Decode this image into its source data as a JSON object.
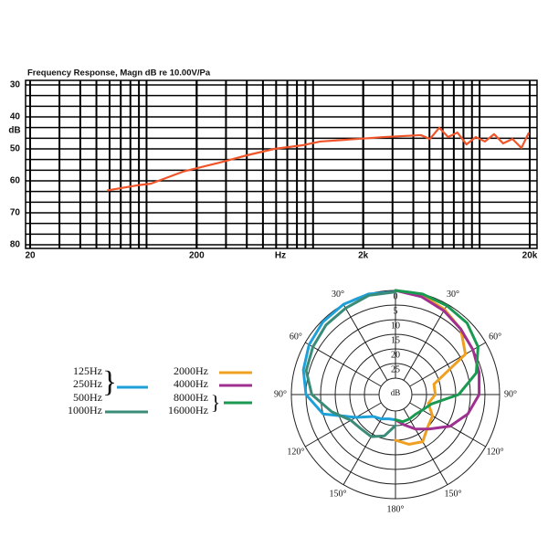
{
  "chart_data": [
    {
      "type": "line",
      "title": "Frequency Response, Magn dB re 10.00V/Pa",
      "xlabel": "Hz",
      "ylabel": "dB",
      "x": [
        58,
        88,
        106,
        166,
        274,
        401,
        586,
        857,
        1104,
        1614,
        2675,
        4437,
        5030,
        5720,
        6470,
        7360,
        8340,
        9490,
        10760,
        12220,
        13850,
        15740,
        17830,
        19770
      ],
      "values": [
        63,
        61.4,
        60.9,
        57.1,
        54.3,
        52,
        50,
        48.9,
        47.7,
        47.1,
        46.3,
        45.7,
        46.9,
        43.4,
        46.3,
        44.9,
        48.6,
        46.3,
        47.7,
        45.4,
        48.3,
        46.9,
        49.7,
        44.9
      ],
      "color": "#f0552a",
      "xlim": [
        20,
        20000
      ],
      "xscale": "log",
      "xticks": [
        20,
        200,
        {
          "value": 2000,
          "label": "2k"
        },
        {
          "value": 20000,
          "label": "20k"
        }
      ],
      "ylim": [
        30,
        80
      ],
      "yinverted": true,
      "yticks": [
        30,
        40,
        50,
        60,
        70,
        80
      ],
      "grid": true
    },
    {
      "type": "polar",
      "rlabel": "dB",
      "rlim": [
        0,
        30
      ],
      "rticks": [
        0,
        5,
        10,
        15,
        20,
        25
      ],
      "thetaticks": [
        {
          "value": 30,
          "label": "30°"
        },
        {
          "value": 60,
          "label": "60°"
        },
        {
          "value": 90,
          "label": "90°"
        },
        {
          "value": 120,
          "label": "120°"
        },
        {
          "value": 150,
          "label": "150°"
        },
        {
          "value": 180,
          "label": "180°"
        }
      ],
      "mirrored": true,
      "series": [
        {
          "name": [
            "125Hz",
            "250Hz",
            "500Hz"
          ],
          "color": "#1ea0d8",
          "side": "left",
          "theta": [
            0,
            15,
            30,
            45,
            60,
            75,
            90,
            105,
            120,
            135,
            150,
            165,
            180
          ],
          "values": [
            0.5,
            0,
            0,
            0.5,
            1.5,
            3,
            5,
            10,
            20,
            25,
            26,
            27,
            27
          ]
        },
        {
          "name": [
            "1000Hz"
          ],
          "color": "#3a8c78",
          "side": "left",
          "theta": [
            0,
            15,
            30,
            45,
            60,
            75,
            90,
            105,
            120,
            135,
            150,
            165,
            180
          ],
          "values": [
            0.5,
            0.5,
            1.5,
            2,
            3,
            4,
            7,
            13,
            18,
            19,
            19,
            21,
            25
          ]
        },
        {
          "name": [
            "2000Hz"
          ],
          "color": "#f0a020",
          "side": "right",
          "theta": [
            0,
            15,
            30,
            45,
            60,
            75,
            90,
            105,
            120,
            135,
            150,
            165,
            180
          ],
          "values": [
            0,
            0.5,
            2,
            4,
            8,
            22,
            22,
            24,
            21,
            20,
            17,
            18,
            20
          ]
        },
        {
          "name": [
            "4000Hz"
          ],
          "color": "#a03090",
          "side": "right",
          "theta": [
            0,
            15,
            30,
            45,
            60,
            75,
            90,
            105,
            120,
            135,
            150,
            165,
            180
          ],
          "values": [
            0,
            1,
            2.5,
            4,
            5,
            6,
            7,
            10,
            14,
            19,
            22,
            25,
            27
          ]
        },
        {
          "name": [
            "8000Hz",
            "16000Hz"
          ],
          "color": "#1a9a50",
          "side": "right",
          "theta": [
            0,
            15,
            30,
            45,
            60,
            75,
            90,
            105,
            120,
            135,
            150,
            165,
            180
          ],
          "values": [
            0,
            0,
            0.5,
            1,
            3,
            7,
            14,
            23,
            25,
            26,
            26,
            26,
            27
          ]
        }
      ]
    }
  ]
}
